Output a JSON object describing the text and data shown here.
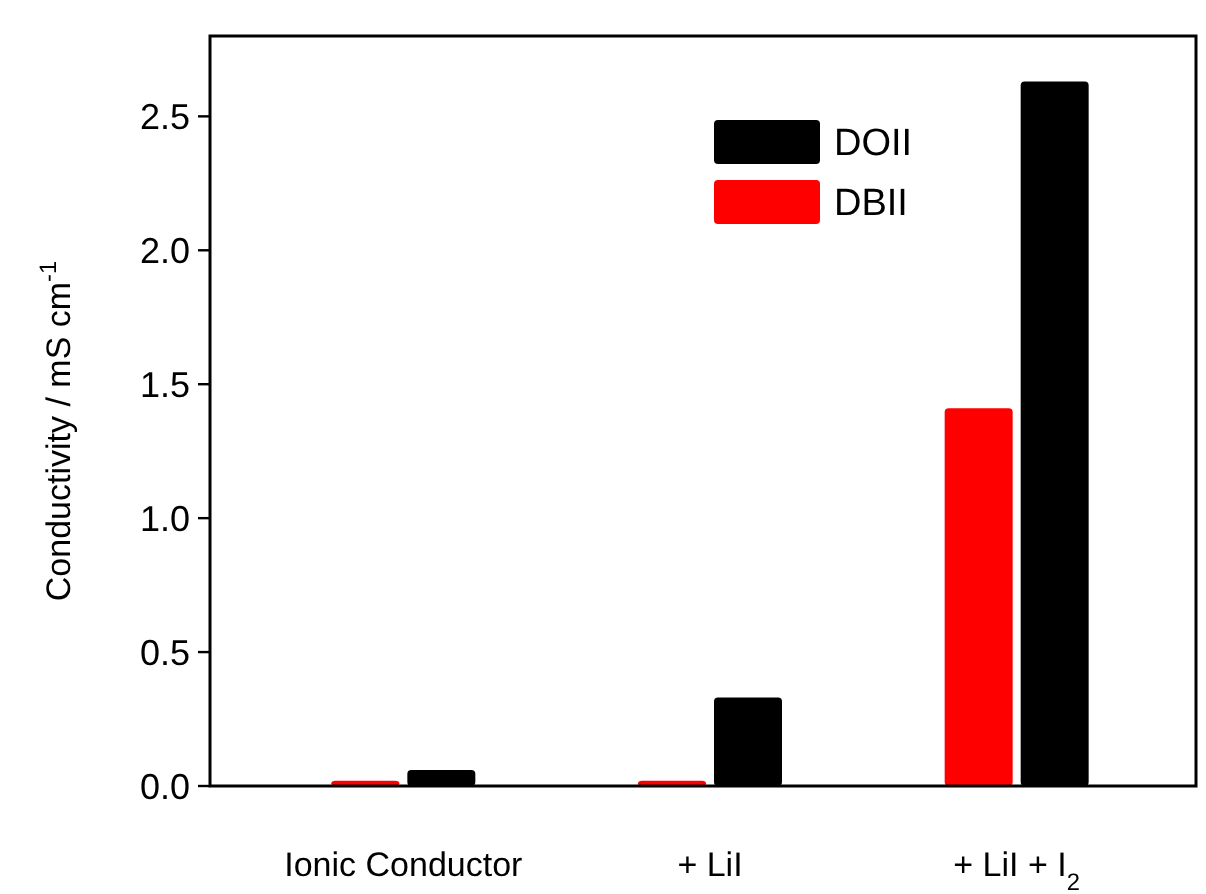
{
  "chart_data": {
    "type": "bar",
    "ylabel": "Conductivity / mS cm$^{-1}$",
    "categories": [
      "Ionic Conductor",
      "+ LiI",
      "+ LiI + I$_{2}$"
    ],
    "series": [
      {
        "name": "DBII",
        "color": "#ff0000",
        "values": [
          0.02,
          0.02,
          1.41
        ]
      },
      {
        "name": "DOII",
        "color": "#000000",
        "values": [
          0.06,
          0.33,
          2.63
        ]
      }
    ],
    "ylim": [
      0,
      2.8
    ],
    "yticks": [
      {
        "value": 0,
        "label": "0.0"
      },
      {
        "value": 0.5,
        "label": "0.5"
      },
      {
        "value": 1,
        "label": "1.0"
      },
      {
        "value": 1.5,
        "label": "1.5"
      },
      {
        "value": 2,
        "label": "2.0"
      },
      {
        "value": 2.5,
        "label": "2.5"
      }
    ],
    "legend": "top",
    "grid": false
  }
}
